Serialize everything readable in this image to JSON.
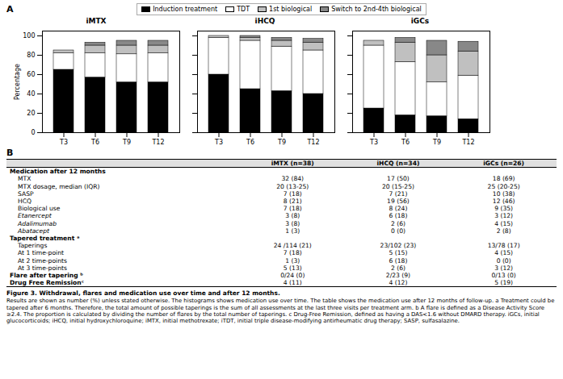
{
  "chart_data": [
    {
      "type": "bar",
      "stacked": true,
      "title": "iMTX",
      "categories": [
        "T3",
        "T6",
        "T9",
        "T12"
      ],
      "series": [
        {
          "name": "Induction treatment",
          "color": "#000000",
          "values": [
            65,
            57,
            52,
            52
          ]
        },
        {
          "name": "TDT",
          "color": "#ffffff",
          "values": [
            17,
            25,
            29,
            30
          ]
        },
        {
          "name": "1st biological",
          "color": "#c0c0c0",
          "values": [
            3,
            8,
            9,
            8
          ]
        },
        {
          "name": "Switch to 2nd-4th biological",
          "color": "#888888",
          "values": [
            0,
            3,
            5,
            5
          ]
        }
      ],
      "ylim": [
        0,
        105
      ],
      "yticks": [
        0,
        20,
        40,
        60,
        80,
        100
      ],
      "ylabel": "Percentage",
      "grid": false,
      "legend": "upper center"
    },
    {
      "type": "bar",
      "stacked": true,
      "title": "iHCQ",
      "categories": [
        "T3",
        "T6",
        "T9",
        "T12"
      ],
      "series": [
        {
          "name": "Induction treatment",
          "color": "#000000",
          "values": [
            60,
            45,
            43,
            40
          ]
        },
        {
          "name": "TDT",
          "color": "#ffffff",
          "values": [
            38,
            50,
            46,
            45
          ]
        },
        {
          "name": "1st biological",
          "color": "#c0c0c0",
          "values": [
            2,
            3,
            6,
            8
          ]
        },
        {
          "name": "Switch to 2nd-4th biological",
          "color": "#888888",
          "values": [
            0,
            2,
            3,
            4
          ]
        }
      ],
      "ylim": [
        0,
        105
      ],
      "yticks": [
        0,
        20,
        40,
        60,
        80,
        100
      ],
      "grid": false,
      "tick_labels": "x"
    },
    {
      "type": "bar",
      "stacked": true,
      "title": "iGCs",
      "categories": [
        "T3",
        "T6",
        "T9",
        "T12"
      ],
      "series": [
        {
          "name": "Induction treatment",
          "color": "#000000",
          "values": [
            25,
            18,
            17,
            14
          ]
        },
        {
          "name": "TDT",
          "color": "#ffffff",
          "values": [
            65,
            55,
            35,
            45
          ]
        },
        {
          "name": "1st biological",
          "color": "#c0c0c0",
          "values": [
            5,
            20,
            28,
            25
          ]
        },
        {
          "name": "Switch to 2nd-4th biological",
          "color": "#888888",
          "values": [
            0,
            5,
            15,
            10
          ]
        }
      ],
      "ylim": [
        0,
        105
      ],
      "yticks": [
        0,
        20,
        40,
        60,
        80,
        100
      ],
      "grid": false,
      "tick_labels": "x"
    }
  ],
  "annotations": [
    "A",
    "B"
  ],
  "table": {
    "columns": [
      "iMTX (n=38)",
      "iHCQ (n=34)",
      "iGCs (n=26)"
    ],
    "rows": [
      {
        "label": "Medication after 12 months",
        "values": [
          null,
          null,
          null
        ],
        "bold": true,
        "italic": false,
        "indent": false
      },
      {
        "label": "MTX",
        "values": [
          "32 (84)",
          "17 (50)",
          "18 (69)"
        ],
        "bold": false,
        "italic": false,
        "indent": true
      },
      {
        "label": "MTX dosage, median (IQR)",
        "values": [
          "20 (13-25)",
          "20 (15-25)",
          "25 (20-25)"
        ],
        "bold": false,
        "italic": false,
        "indent": true
      },
      {
        "label": "SASP",
        "values": [
          "7 (18)",
          "7 (21)",
          "10 (38)"
        ],
        "bold": false,
        "italic": false,
        "indent": true
      },
      {
        "label": "HCQ",
        "values": [
          "8 (21)",
          "19 (56)",
          "12 (46)"
        ],
        "bold": false,
        "italic": false,
        "indent": true
      },
      {
        "label": "Biological use",
        "values": [
          "7 (18)",
          "8 (24)",
          "9 (35)"
        ],
        "bold": false,
        "italic": false,
        "indent": true
      },
      {
        "label": "Etanercept",
        "values": [
          "3 (8)",
          "6 (18)",
          "3 (12)"
        ],
        "bold": false,
        "italic": true,
        "indent": true
      },
      {
        "label": "Adalimumab",
        "values": [
          "3 (8)",
          "2 (6)",
          "4 (15)"
        ],
        "bold": false,
        "italic": true,
        "indent": true
      },
      {
        "label": "Abatacept",
        "values": [
          "1 (3)",
          "0 (0)",
          "2 (8)"
        ],
        "bold": false,
        "italic": true,
        "indent": true
      },
      {
        "label": "Tapered treatment ᵃ",
        "values": [
          null,
          null,
          null
        ],
        "bold": true,
        "italic": false,
        "indent": false
      },
      {
        "label": "Taperings",
        "values": [
          "24 /114 (21)",
          "23/102 (23)",
          "13/78 (17)"
        ],
        "bold": false,
        "italic": false,
        "indent": true
      },
      {
        "label": "At 1 time-point",
        "values": [
          "7 (18)",
          "5 (15)",
          "4 (15)"
        ],
        "bold": false,
        "italic": false,
        "indent": true
      },
      {
        "label": "At 2 time-points",
        "values": [
          "1 (3)",
          "6 (18)",
          "0 (0)"
        ],
        "bold": false,
        "italic": false,
        "indent": true
      },
      {
        "label": "At 3 time-points",
        "values": [
          "5 (13)",
          "2 (6)",
          "3 (12)"
        ],
        "bold": false,
        "italic": false,
        "indent": true
      },
      {
        "label": "Flare after tapering ᵇ",
        "values": [
          "0/24 (0)",
          "2/23 (9)",
          "0/13 (0)"
        ],
        "bold": true,
        "italic": false,
        "indent": false
      },
      {
        "label": "Drug Free Remissionᶜ",
        "values": [
          "4 (11)",
          "4 (12)",
          "5 (19)"
        ],
        "bold": true,
        "italic": false,
        "indent": false
      }
    ]
  },
  "caption": {
    "title": "Figure 3. Withdrawal, flares and medication use over time and after 12 months.",
    "text": "Results are shown as number (%) unless stated otherwise. The histograms shows medication use over time. The table shows the medication use after 12 months of follow-up. a Treatment could be tapered after 6 months. Therefore, the total amount of possible taperings is the sum of all assessments at the last three visits per treatment arm. b A flare is defined as a Disease Activity Score ≥2.4. The proportion is calculated by dividing the number of flares by the total number of taperings. c Drug-Free Remission, defined as having a DAS<1.6 without DMARD therapy. iGCs, initial glucocorticoids; iHCQ, initial hydroxychloroquine; iMTX, initial methotrexate; iTDT, initial triple disease-modifying antirheumatic drug therapy; SASP, sulfasalazine."
  }
}
